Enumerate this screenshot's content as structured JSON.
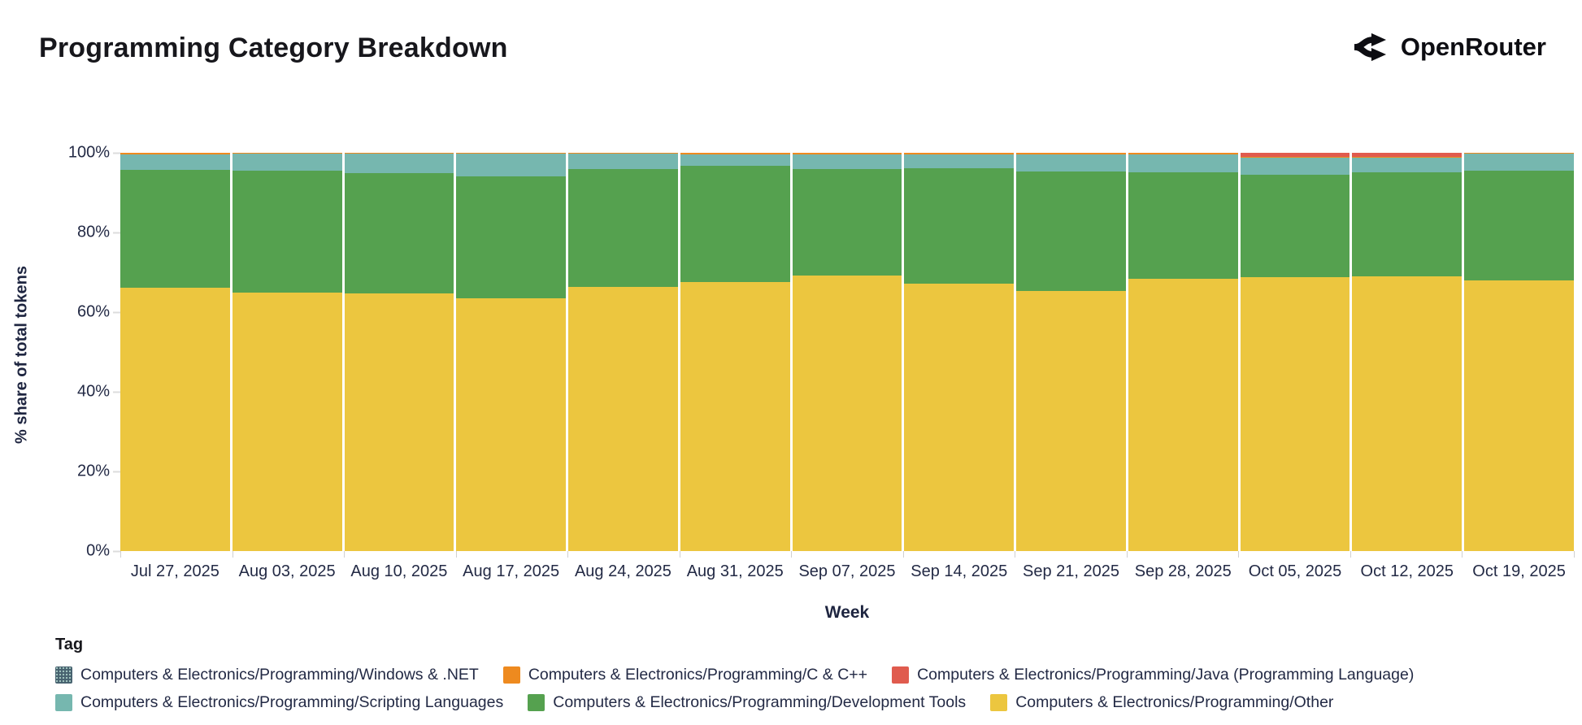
{
  "header": {
    "title": "Programming Category Breakdown",
    "brand": "OpenRouter"
  },
  "chart_data": {
    "type": "bar",
    "stacked": true,
    "normalized_percent": true,
    "title": "Programming Category Breakdown",
    "xlabel": "Week",
    "ylabel": "% share of total tokens",
    "ylim": [
      0,
      100
    ],
    "y_ticks": [
      "0%",
      "20%",
      "40%",
      "60%",
      "80%",
      "100%"
    ],
    "grid": false,
    "legend_title": "Tag",
    "legend_position": "bottom",
    "categories": [
      "Jul 27, 2025",
      "Aug 03, 2025",
      "Aug 10, 2025",
      "Aug 17, 2025",
      "Aug 24, 2025",
      "Aug 31, 2025",
      "Sep 07, 2025",
      "Sep 14, 2025",
      "Sep 21, 2025",
      "Sep 28, 2025",
      "Oct 05, 2025",
      "Oct 12, 2025",
      "Oct 19, 2025"
    ],
    "series": [
      {
        "name": "Computers & Electronics/Programming/Windows & .NET",
        "key": "windows-dotnet",
        "color": "#47626f",
        "pattern": "dots",
        "values": [
          0,
          0,
          0,
          0,
          0,
          0,
          0,
          0,
          0,
          0,
          0,
          0,
          0
        ]
      },
      {
        "name": "Computers & Electronics/Programming/C & C++",
        "key": "c-cpp",
        "color": "#ee8a1f",
        "values": [
          0.3,
          0.3,
          0.3,
          0.3,
          0.3,
          0.3,
          0.3,
          0.3,
          0.3,
          0.3,
          0.2,
          0.2,
          0.3
        ]
      },
      {
        "name": "Computers & Electronics/Programming/Java (Programming Language)",
        "key": "java",
        "color": "#e05b4e",
        "values": [
          0,
          0,
          0,
          0,
          0,
          0,
          0,
          0,
          0,
          0,
          1.0,
          1.1,
          0
        ]
      },
      {
        "name": "Computers & Electronics/Programming/Scripting Languages",
        "key": "scripting-languages",
        "color": "#76b7af",
        "values": [
          4.0,
          4.2,
          4.8,
          5.6,
          3.7,
          3.0,
          3.7,
          3.6,
          4.4,
          4.6,
          4.3,
          3.6,
          4.2
        ]
      },
      {
        "name": "Computers & Electronics/Programming/Development Tools",
        "key": "development-tools",
        "color": "#55a14f",
        "values": [
          29.6,
          30.5,
          30.3,
          30.6,
          29.6,
          29.1,
          26.9,
          28.9,
          29.9,
          26.8,
          25.7,
          26.1,
          27.5
        ]
      },
      {
        "name": "Computers & Electronics/Programming/Other",
        "key": "other",
        "color": "#ecc63f",
        "values": [
          66.1,
          65.0,
          64.6,
          63.5,
          66.4,
          67.6,
          69.1,
          67.2,
          65.4,
          68.3,
          68.8,
          69.0,
          68.0
        ]
      }
    ],
    "stack_order_bottom_to_top": [
      "other",
      "development-tools",
      "scripting-languages",
      "c-cpp",
      "java",
      "windows-dotnet"
    ],
    "legend_rows": [
      [
        "windows-dotnet",
        "c-cpp",
        "java"
      ],
      [
        "scripting-languages",
        "development-tools",
        "other"
      ]
    ]
  }
}
